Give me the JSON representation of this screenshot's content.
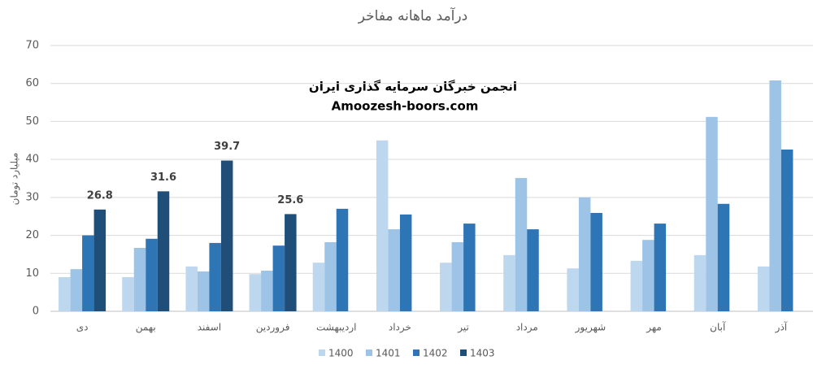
{
  "chart_data": {
    "type": "bar",
    "title": "درآمد ماهانه مفاخر",
    "y_label": "میلیارد تومان",
    "annotations": [
      "انجمن خبرگان سرمایه گذاری ایران",
      "Amoozesh-boors.com"
    ],
    "categories": [
      "دی",
      "بهمن",
      "اسفند",
      "فروردین",
      "اردیبهشت",
      "خرداد",
      "تیر",
      "مرداد",
      "شهریور",
      "مهر",
      "آبان",
      "آذر"
    ],
    "series": [
      {
        "name": "1400",
        "color": "#bdd7ee",
        "values": [
          9,
          9,
          11.8,
          9.8,
          12.8,
          45,
          12.8,
          14.8,
          11.3,
          13.3,
          14.8,
          11.8
        ]
      },
      {
        "name": "1401",
        "color": "#9dc3e6",
        "values": [
          11.1,
          16.7,
          10.5,
          10.7,
          18.2,
          21.6,
          18.2,
          35.1,
          30,
          18.8,
          51.2,
          60.8
        ]
      },
      {
        "name": "1402",
        "color": "#2e75b6",
        "values": [
          20,
          19.1,
          18,
          17.3,
          27,
          25.5,
          23.1,
          21.6,
          25.9,
          23.1,
          28.3,
          42.6
        ]
      },
      {
        "name": "1403",
        "color": "#1f4e79",
        "values": [
          26.8,
          31.6,
          39.7,
          25.6,
          null,
          null,
          null,
          null,
          null,
          null,
          null,
          null
        ],
        "data_labels": true
      }
    ],
    "ylim": [
      0,
      70
    ],
    "yticks": [
      0,
      10,
      20,
      30,
      40,
      50,
      60,
      70
    ],
    "grid": true,
    "legend": "bottom"
  }
}
